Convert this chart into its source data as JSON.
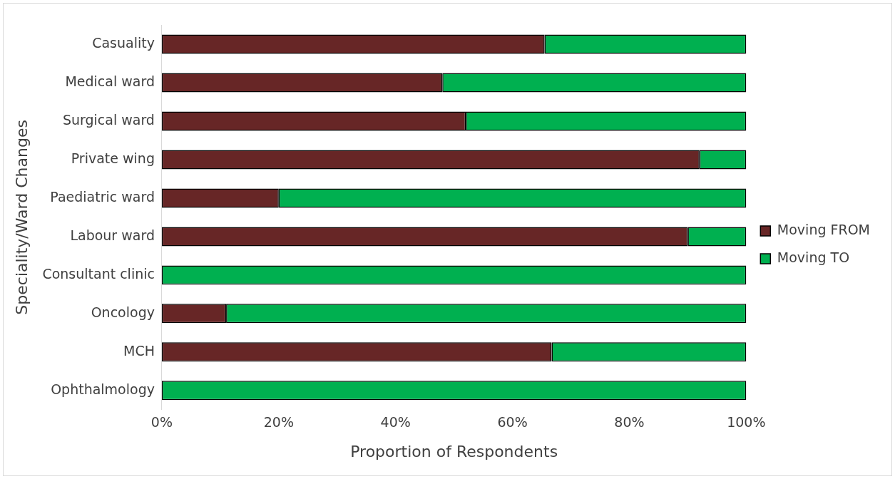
{
  "chart_data": {
    "type": "bar",
    "orientation": "horizontal",
    "stacked": true,
    "xlabel": "Proportion of Respondents",
    "ylabel": "Speciality/Ward Changes",
    "categories": [
      "Casuality",
      "Medical ward",
      "Surgical ward",
      "Private wing",
      "Paediatric ward",
      "Labour ward",
      "Consultant clinic",
      "Oncology",
      "MCH",
      "Ophthalmology"
    ],
    "series": [
      {
        "name": "Moving FROM",
        "color": "#672626",
        "values": [
          65.5,
          48,
          52,
          92,
          20,
          90,
          0,
          11,
          66.7,
          0
        ]
      },
      {
        "name": "Moving TO",
        "color": "#00b050",
        "values": [
          34.5,
          52,
          48,
          8,
          80,
          10,
          100,
          89,
          33.3,
          100
        ]
      }
    ],
    "xlim": [
      0,
      100
    ],
    "xticks": [
      {
        "value": 0,
        "label": "0%"
      },
      {
        "value": 20,
        "label": "20%"
      },
      {
        "value": 40,
        "label": "40%"
      },
      {
        "value": 60,
        "label": "60%"
      },
      {
        "value": 80,
        "label": "80%"
      },
      {
        "value": 100,
        "label": "100%"
      }
    ],
    "grid": false,
    "legend": "right"
  }
}
